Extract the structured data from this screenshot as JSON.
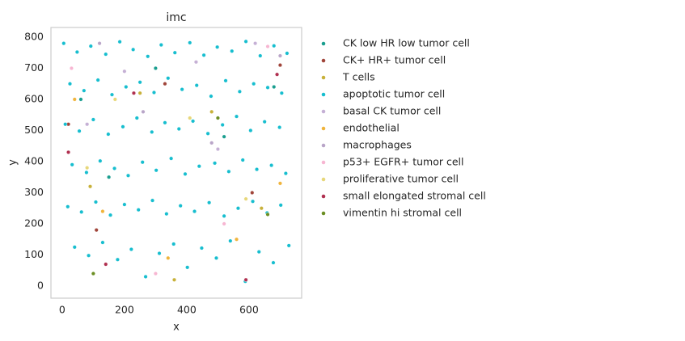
{
  "chart_data": {
    "type": "scatter",
    "title": "imc",
    "x_label": "x",
    "y_label": "y",
    "xlim": [
      -36,
      769
    ],
    "ylim": [
      -39,
      831
    ],
    "xticks": [
      0,
      200,
      400,
      600
    ],
    "yticks": [
      0,
      100,
      200,
      300,
      400,
      500,
      600,
      700,
      800
    ],
    "series": [
      {
        "name": "CK low HR low tumor cell",
        "color": "#1a9e8f",
        "x": [
          60,
          300,
          520,
          680,
          150
        ],
        "values": [
          600,
          700,
          480,
          640,
          350
        ]
      },
      {
        "name": "CK+ HR+ tumor cell",
        "color": "#a0453a",
        "x": [
          20,
          330,
          700,
          110,
          610
        ],
        "values": [
          520,
          650,
          710,
          180,
          300
        ]
      },
      {
        "name": "T cells",
        "color": "#c8b13a",
        "x": [
          90,
          480,
          250,
          640,
          360
        ],
        "values": [
          320,
          560,
          620,
          250,
          20
        ]
      },
      {
        "name": "apoptotic tumor cell",
        "color": "#17becf",
        "x": [
          5,
          48,
          92,
          140,
          185,
          228,
          275,
          318,
          362,
          410,
          455,
          498,
          545,
          590,
          636,
          680,
          722,
          25,
          70,
          115,
          160,
          205,
          250,
          295,
          340,
          385,
          432,
          478,
          525,
          570,
          615,
          660,
          705,
          10,
          55,
          100,
          148,
          195,
          240,
          288,
          330,
          375,
          420,
          468,
          515,
          560,
          605,
          650,
          698,
          32,
          78,
          122,
          168,
          212,
          258,
          302,
          350,
          395,
          440,
          490,
          535,
          580,
          625,
          672,
          718,
          18,
          62,
          108,
          155,
          200,
          245,
          290,
          335,
          380,
          425,
          472,
          520,
          565,
          612,
          658,
          702,
          40,
          85,
          130,
          178,
          222,
          268,
          312,
          358,
          402,
          448,
          495,
          540,
          588,
          632,
          678,
          728
        ],
        "values": [
          780,
          752,
          771,
          745,
          785,
          760,
          738,
          775,
          750,
          782,
          742,
          768,
          755,
          786,
          740,
          772,
          748,
          650,
          628,
          662,
          615,
          640,
          655,
          622,
          668,
          632,
          645,
          610,
          660,
          625,
          650,
          638,
          620,
          520,
          498,
          535,
          488,
          512,
          540,
          495,
          525,
          505,
          530,
          490,
          518,
          545,
          500,
          528,
          510,
          390,
          365,
          402,
          378,
          355,
          398,
          372,
          410,
          360,
          385,
          395,
          368,
          405,
          375,
          388,
          362,
          255,
          238,
          270,
          228,
          262,
          245,
          275,
          232,
          258,
          240,
          268,
          225,
          250,
          272,
          235,
          260,
          125,
          98,
          140,
          85,
          118,
          30,
          105,
          135,
          60,
          122,
          90,
          145,
          15,
          110,
          75,
          130
        ]
      },
      {
        "name": "basal CK tumor cell",
        "color": "#c5b0d5",
        "x": [
          80,
          430,
          500,
          620,
          200
        ],
        "values": [
          520,
          720,
          440,
          780,
          690
        ]
      },
      {
        "name": "endothelial",
        "color": "#f0b43c",
        "x": [
          130,
          340,
          560,
          700,
          40
        ],
        "values": [
          240,
          90,
          150,
          330,
          600
        ]
      },
      {
        "name": "macrophages",
        "color": "#b9a5c8",
        "x": [
          480,
          700,
          260,
          120
        ],
        "values": [
          460,
          740,
          560,
          780
        ]
      },
      {
        "name": "p53+ EGFR+ tumor cell",
        "color": "#f7b6d2",
        "x": [
          30,
          520,
          660,
          300
        ],
        "values": [
          700,
          200,
          770,
          40
        ]
      },
      {
        "name": "proliferative tumor cell",
        "color": "#e7d77a",
        "x": [
          170,
          410,
          590,
          80
        ],
        "values": [
          600,
          540,
          280,
          380
        ]
      },
      {
        "name": "small elongated stromal cell",
        "color": "#b03050",
        "x": [
          20,
          230,
          590,
          690,
          140
        ],
        "values": [
          430,
          620,
          20,
          680,
          70
        ]
      },
      {
        "name": "vimentin hi stromal cell",
        "color": "#6b8e23",
        "x": [
          500,
          660,
          100
        ],
        "values": [
          540,
          230,
          40
        ]
      }
    ]
  }
}
